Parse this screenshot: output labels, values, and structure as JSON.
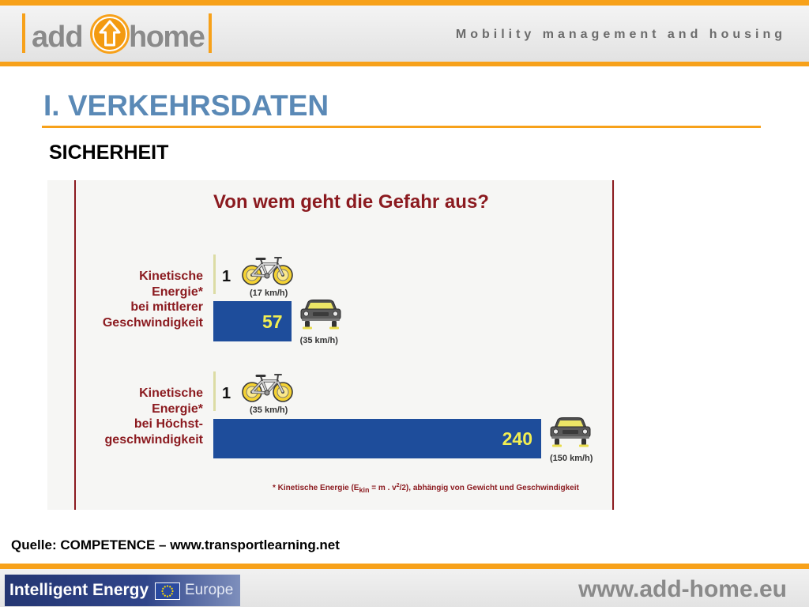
{
  "header": {
    "logo_left": "add",
    "logo_right": "home",
    "logo_icon": "up-arrow-circle-icon",
    "tagline": "Mobility management and housing"
  },
  "slide": {
    "title": "I. VERKEHRSDATEN",
    "section": "SICHERHEIT",
    "source": "Quelle: COMPETENCE – www.transportlearning.net"
  },
  "chart_data": {
    "type": "bar",
    "orientation": "horizontal",
    "title": "Von wem geht die Gefahr aus?",
    "xlim": [
      0,
      240
    ],
    "grid": false,
    "legend": "none",
    "groups": [
      {
        "label_lines": [
          "Kinetische",
          "Energie*",
          "bei mittlerer",
          "Geschwindigkeit"
        ],
        "bars": [
          {
            "icon": "bicycle-icon",
            "value": 1,
            "speed": "(17 km/h)"
          },
          {
            "icon": "car-icon",
            "value": 57,
            "speed": "(35 km/h)"
          }
        ]
      },
      {
        "label_lines": [
          "Kinetische",
          "Energie*",
          "bei Höchst-",
          "geschwindigkeit"
        ],
        "bars": [
          {
            "icon": "bicycle-icon",
            "value": 1,
            "speed": "(35 km/h)"
          },
          {
            "icon": "car-icon",
            "value": 240,
            "speed": "(150 km/h)"
          }
        ]
      }
    ],
    "footnote": {
      "before_sub": "* Kinetische Energie (E",
      "sub": "kin",
      "middle": " = m . v",
      "sup": "2",
      "after": "/2), abhängig von Gewicht und Geschwindigkeit"
    }
  },
  "footer": {
    "program_logo_text": "Intelligent Energy",
    "program_logo_region": "Europe",
    "flag_icon": "eu-flag-icon",
    "website": "www.add-home.eu"
  },
  "colors": {
    "accent_orange": "#f7a11a",
    "title_blue": "#5a89b6",
    "chart_red": "#8b1a1f",
    "bar_blue": "#1e4d9b",
    "value_yellow": "#f2ee52"
  }
}
